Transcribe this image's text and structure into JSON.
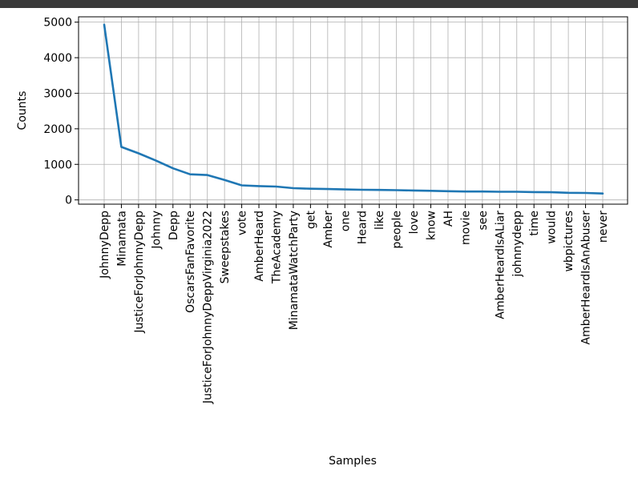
{
  "colors": {
    "top_bar": "#3a3a3a",
    "line": "#1f77b4",
    "grid": "#b0b0b0",
    "axis": "#000000"
  },
  "chart_data": {
    "type": "line",
    "title": "",
    "xlabel": "Samples",
    "ylabel": "Counts",
    "ylim": [
      -120,
      5150
    ],
    "yticks": [
      0,
      1000,
      2000,
      3000,
      4000,
      5000
    ],
    "ytick_labels": [
      "0",
      "1000",
      "2000",
      "3000",
      "4000",
      "5000"
    ],
    "grid": true,
    "categories": [
      "JohnnyDepp",
      "Minamata",
      "JusticeForJohnnyDepp",
      "Johnny",
      "Depp",
      "OscarsFanFavorite",
      "JusticeForJohnnyDeppVirginia2022",
      "Sweepstakes",
      "vote",
      "AmberHeard",
      "TheAcademy",
      "MinamataWatchParty",
      "get",
      "Amber",
      "one",
      "Heard",
      "like",
      "people",
      "love",
      "know",
      "AH",
      "movie",
      "see",
      "AmberHeardIsALiar",
      "johnnydepp",
      "time",
      "would",
      "wbpictures",
      "AmberHeardIsAnAbuser",
      "never"
    ],
    "series": [
      {
        "values": [
          4930,
          1490,
          1310,
          1110,
          890,
          720,
          700,
          560,
          410,
          390,
          375,
          330,
          315,
          305,
          295,
          285,
          280,
          275,
          265,
          255,
          245,
          235,
          235,
          230,
          230,
          220,
          215,
          200,
          195,
          180
        ]
      }
    ]
  }
}
